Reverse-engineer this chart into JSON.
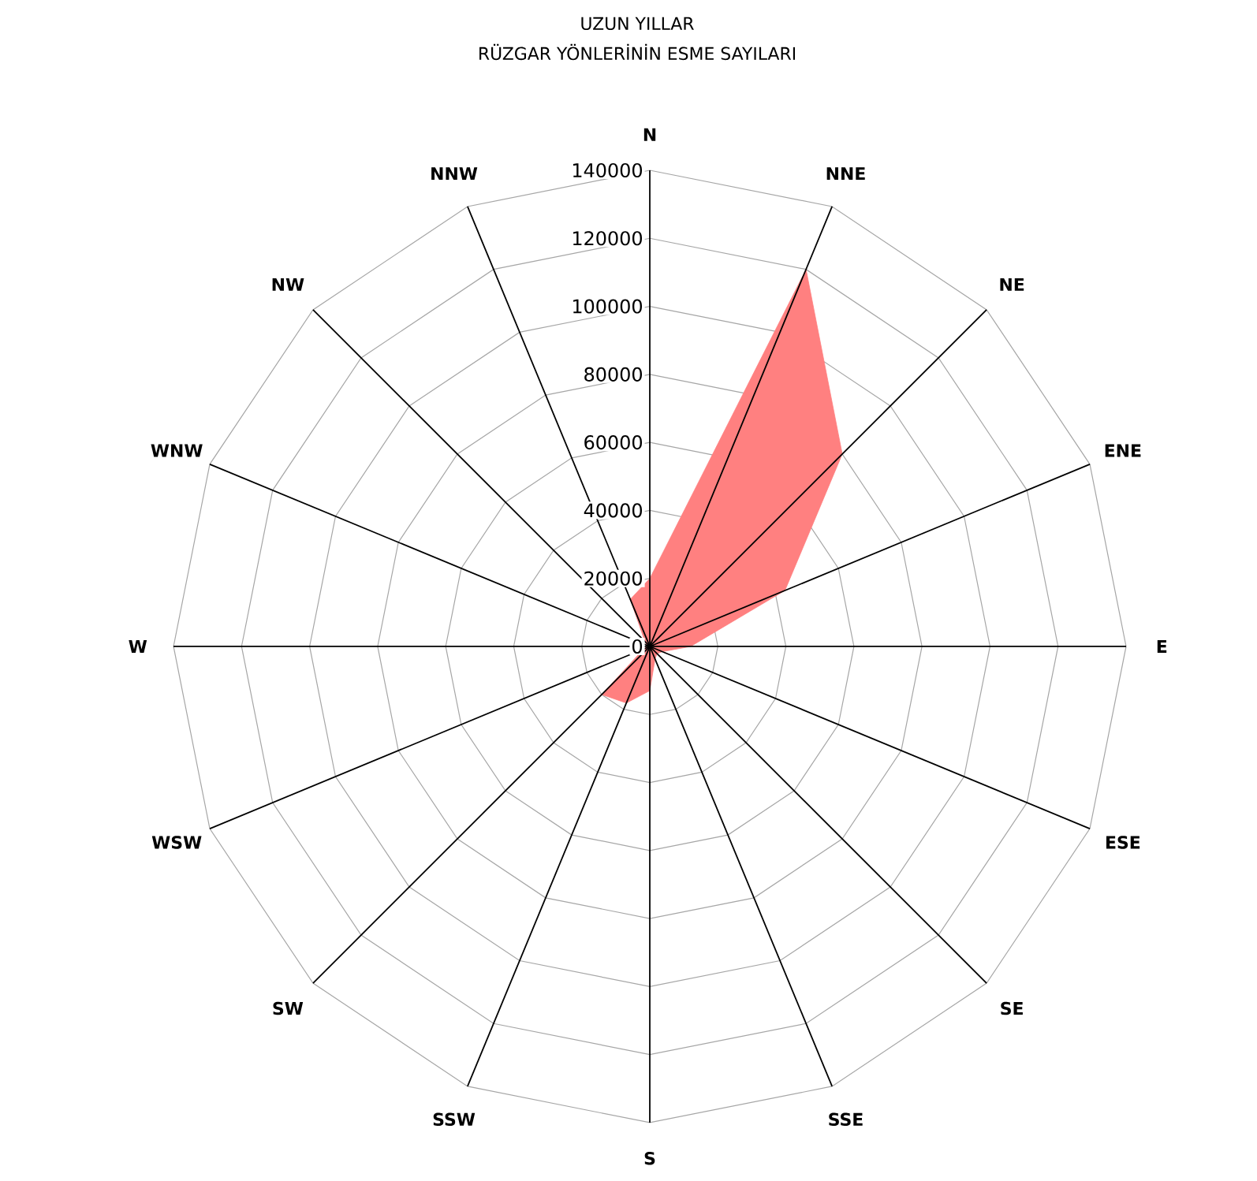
{
  "chart_data": {
    "type": "radar",
    "title": "UZUN YILLAR",
    "subtitle": "RÜZGAR YÖNLERİNİN ESME SAYILARI",
    "categories": [
      "N",
      "NNE",
      "NE",
      "ENE",
      "E",
      "ESE",
      "SE",
      "SSE",
      "S",
      "SSW",
      "SW",
      "WSW",
      "W",
      "WNW",
      "NW",
      "NNW"
    ],
    "series": [
      {
        "color": "#ff8080",
        "values": [
          20000,
          120000,
          80000,
          43000,
          12000,
          4000,
          3000,
          4000,
          13000,
          18000,
          20000,
          2000,
          1000,
          1000,
          2000,
          15000
        ]
      }
    ],
    "ylim": [
      0,
      140000
    ],
    "yticks": [
      0,
      20000,
      40000,
      60000,
      80000,
      100000,
      120000,
      140000
    ],
    "grid": true
  }
}
